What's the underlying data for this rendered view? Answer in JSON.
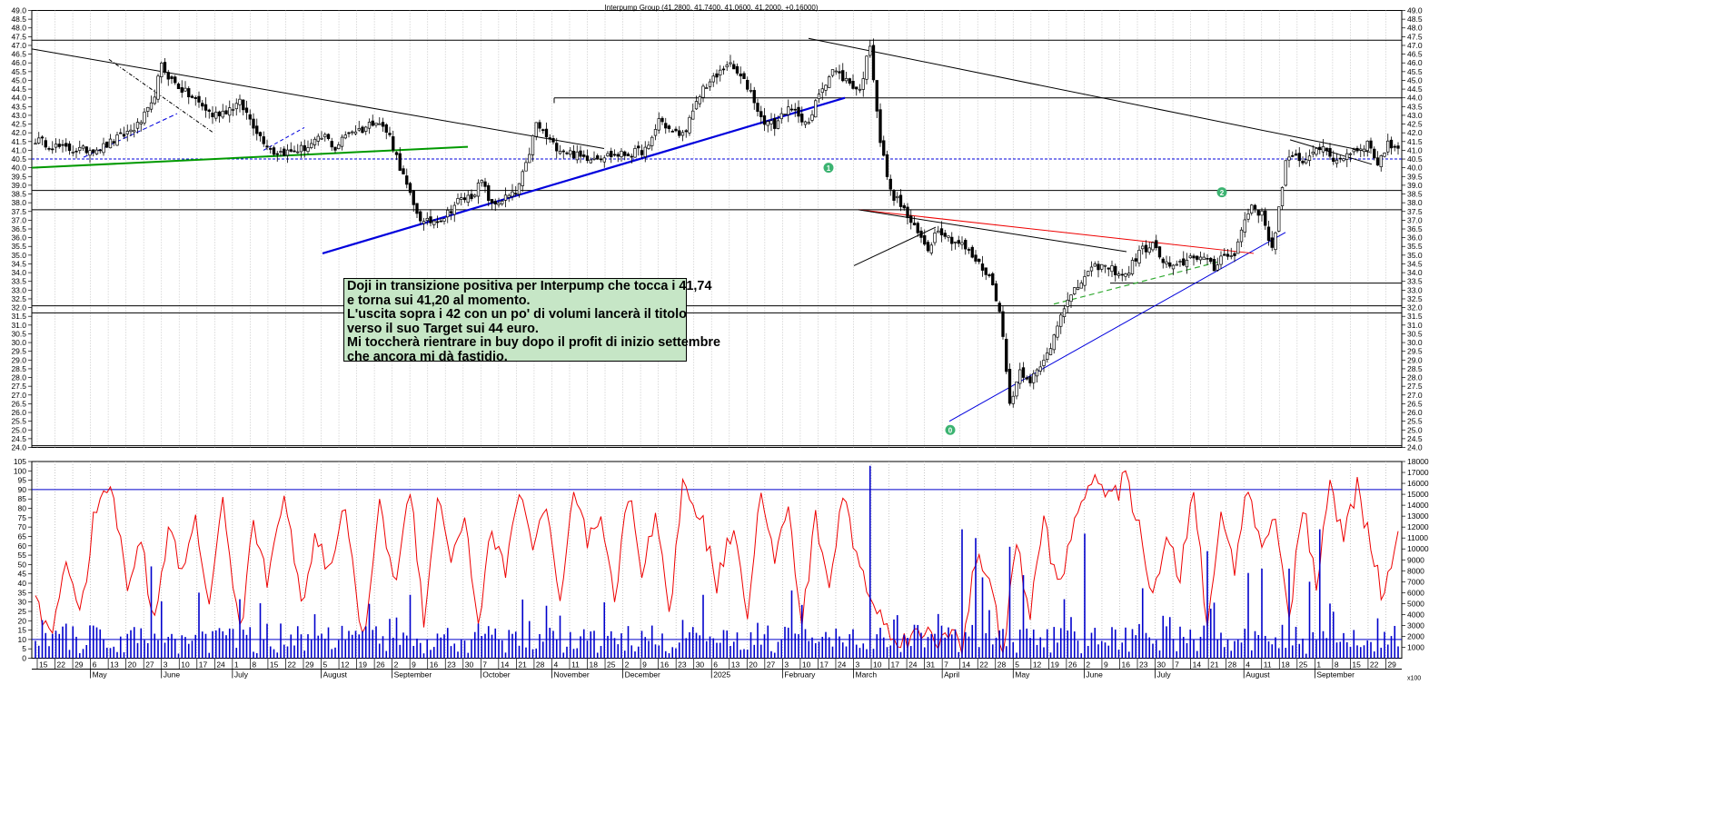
{
  "header": {
    "title": "Interpump Group (41.2800, 41.7400, 41.0600, 41.2000, +0.16000)"
  },
  "note": {
    "lines": [
      "Doji in transizione positiva per Interpump che tocca i 41,74",
      "e torna sui 41,20 al momento.",
      "L'uscita sopra i 42 con un po' di volumi lancerà il titolo",
      "verso il suo Target sui 44 euro.",
      "Mi toccherà rientrare in buy dopo il profit di inizio settembre",
      "che ancora mi dà fastidio."
    ]
  },
  "chart_data": [
    {
      "type": "candlestick",
      "title": "Interpump Group (41.2800, 41.7400, 41.0600, 41.2000, +0.16000)",
      "ylim": [
        24.0,
        49.0
      ],
      "y_ticks": [
        "49.0",
        "48.5",
        "48.0",
        "47.5",
        "47.0",
        "46.5",
        "46.0",
        "45.5",
        "45.0",
        "44.5",
        "44.0",
        "43.5",
        "43.0",
        "42.5",
        "42.0",
        "41.5",
        "41.0",
        "40.5",
        "40.0",
        "39.5",
        "39.0",
        "38.5",
        "38.0",
        "37.5",
        "37.0",
        "36.5",
        "36.0",
        "35.5",
        "35.0",
        "34.5",
        "34.0",
        "33.5",
        "33.0",
        "32.5",
        "32.0",
        "31.5",
        "31.0",
        "30.5",
        "30.0",
        "29.5",
        "29.0",
        "28.5",
        "28.0",
        "27.5",
        "27.0",
        "26.5",
        "26.0",
        "25.5",
        "25.0",
        "24.5",
        "24.0"
      ],
      "last_ohlc": {
        "open": 41.28,
        "high": 41.74,
        "low": 41.06,
        "close": 41.2,
        "change": 0.16
      },
      "price_path": [
        [
          0,
          41.6
        ],
        [
          8,
          41.1
        ],
        [
          14,
          41.0
        ],
        [
          20,
          41.2
        ],
        [
          26,
          41.9
        ],
        [
          30,
          42.4
        ],
        [
          34,
          43.5
        ],
        [
          37,
          45.8
        ],
        [
          40,
          45.0
        ],
        [
          44,
          44.3
        ],
        [
          48,
          43.7
        ],
        [
          52,
          43.0
        ],
        [
          56,
          43.3
        ],
        [
          60,
          43.7
        ],
        [
          63,
          42.8
        ],
        [
          66,
          41.8
        ],
        [
          70,
          40.9
        ],
        [
          75,
          40.9
        ],
        [
          80,
          41.2
        ],
        [
          85,
          41.8
        ],
        [
          88,
          41.1
        ],
        [
          92,
          42.1
        ],
        [
          96,
          42.2
        ],
        [
          100,
          42.8
        ],
        [
          104,
          41.8
        ],
        [
          108,
          39.5
        ],
        [
          111,
          37.8
        ],
        [
          114,
          36.8
        ],
        [
          117,
          37.0
        ],
        [
          120,
          37.2
        ],
        [
          124,
          38.1
        ],
        [
          128,
          38.4
        ],
        [
          131,
          39.2
        ],
        [
          134,
          37.8
        ],
        [
          137,
          38.2
        ],
        [
          141,
          38.5
        ],
        [
          144,
          40.1
        ],
        [
          147,
          42.5
        ],
        [
          152,
          41.3
        ],
        [
          160,
          40.6
        ],
        [
          168,
          40.7
        ],
        [
          175,
          40.8
        ],
        [
          180,
          41.1
        ],
        [
          183,
          42.8
        ],
        [
          187,
          42.0
        ],
        [
          190,
          41.9
        ],
        [
          193,
          43.1
        ],
        [
          196,
          44.6
        ],
        [
          200,
          45.2
        ],
        [
          203,
          46.0
        ],
        [
          206,
          45.4
        ],
        [
          210,
          44.4
        ],
        [
          213,
          42.8
        ],
        [
          217,
          42.4
        ],
        [
          220,
          43.3
        ],
        [
          224,
          43.1
        ],
        [
          227,
          42.4
        ],
        [
          230,
          44.3
        ],
        [
          234,
          45.6
        ],
        [
          238,
          45.0
        ],
        [
          242,
          44.4
        ],
        [
          245,
          47.1
        ],
        [
          248,
          41.5
        ],
        [
          251,
          38.6
        ],
        [
          254,
          37.9
        ],
        [
          258,
          36.5
        ],
        [
          262,
          35.4
        ],
        [
          265,
          36.6
        ],
        [
          268,
          36.0
        ],
        [
          272,
          35.6
        ],
        [
          276,
          34.7
        ],
        [
          280,
          33.8
        ],
        [
          283,
          32.0
        ],
        [
          286,
          26.5
        ],
        [
          289,
          28.4
        ],
        [
          292,
          27.9
        ],
        [
          295,
          28.5
        ],
        [
          298,
          29.8
        ],
        [
          301,
          31.8
        ],
        [
          304,
          32.6
        ],
        [
          308,
          33.8
        ],
        [
          312,
          34.4
        ],
        [
          316,
          34.2
        ],
        [
          320,
          33.8
        ],
        [
          324,
          35.2
        ],
        [
          328,
          35.6
        ],
        [
          331,
          34.6
        ],
        [
          334,
          34.2
        ],
        [
          337,
          34.6
        ],
        [
          340,
          35.0
        ],
        [
          343,
          34.8
        ],
        [
          346,
          34.2
        ],
        [
          349,
          35.2
        ],
        [
          352,
          34.9
        ],
        [
          354,
          36.5
        ],
        [
          357,
          37.9
        ],
        [
          360,
          37.3
        ],
        [
          363,
          35.4
        ],
        [
          365,
          37.6
        ],
        [
          367,
          40.3
        ],
        [
          370,
          40.6
        ],
        [
          373,
          40.4
        ],
        [
          376,
          41.3
        ],
        [
          379,
          40.8
        ],
        [
          382,
          40.4
        ],
        [
          385,
          40.8
        ],
        [
          388,
          41.1
        ],
        [
          391,
          41.4
        ],
        [
          394,
          40.3
        ],
        [
          397,
          41.3
        ],
        [
          400,
          41.2
        ]
      ]
    },
    {
      "type": "bar",
      "title": "Volume",
      "ylim": [
        0,
        18000
      ],
      "y_ticks": [
        "18000",
        "17000",
        "16000",
        "15000",
        "14000",
        "13000",
        "12000",
        "11000",
        "10000",
        "9000",
        "8000",
        "7000",
        "6000",
        "5000",
        "4000",
        "3000",
        "2000",
        "1000"
      ],
      "scale_label": "x100",
      "reference_level": 4000
    },
    {
      "type": "line",
      "title": "Oscillator",
      "ylim": [
        0,
        105
      ],
      "y_ticks": [
        "105",
        "100",
        "95",
        "90",
        "85",
        "80",
        "75",
        "70",
        "65",
        "60",
        "55",
        "50",
        "45",
        "40",
        "35",
        "30",
        "25",
        "20",
        "15",
        "10",
        "5",
        "0"
      ],
      "levels": [
        90,
        10
      ],
      "anchor_values": [
        [
          0,
          28
        ],
        [
          5,
          14
        ],
        [
          9,
          56
        ],
        [
          13,
          20
        ],
        [
          17,
          72
        ],
        [
          22,
          95
        ],
        [
          27,
          38
        ],
        [
          31,
          62
        ],
        [
          35,
          18
        ],
        [
          39,
          70
        ],
        [
          43,
          44
        ],
        [
          47,
          78
        ],
        [
          51,
          24
        ],
        [
          55,
          88
        ],
        [
          60,
          12
        ],
        [
          64,
          72
        ],
        [
          68,
          42
        ],
        [
          73,
          92
        ],
        [
          78,
          26
        ],
        [
          82,
          66
        ],
        [
          86,
          44
        ],
        [
          91,
          82
        ],
        [
          96,
          8
        ],
        [
          101,
          80
        ],
        [
          106,
          40
        ],
        [
          110,
          92
        ],
        [
          114,
          22
        ],
        [
          118,
          86
        ],
        [
          122,
          54
        ],
        [
          126,
          76
        ],
        [
          130,
          18
        ],
        [
          134,
          70
        ],
        [
          138,
          44
        ],
        [
          142,
          92
        ],
        [
          146,
          60
        ],
        [
          150,
          82
        ],
        [
          154,
          26
        ],
        [
          158,
          88
        ],
        [
          162,
          62
        ],
        [
          166,
          72
        ],
        [
          170,
          30
        ],
        [
          174,
          88
        ],
        [
          178,
          48
        ],
        [
          182,
          78
        ],
        [
          186,
          22
        ],
        [
          190,
          92
        ],
        [
          195,
          78
        ],
        [
          200,
          40
        ],
        [
          205,
          72
        ],
        [
          209,
          26
        ],
        [
          213,
          90
        ],
        [
          217,
          50
        ],
        [
          221,
          82
        ],
        [
          225,
          16
        ],
        [
          229,
          76
        ],
        [
          233,
          36
        ],
        [
          237,
          88
        ],
        [
          241,
          56
        ],
        [
          245,
          32
        ],
        [
          249,
          18
        ],
        [
          253,
          12
        ],
        [
          257,
          10
        ],
        [
          261,
          14
        ],
        [
          265,
          8
        ],
        [
          269,
          18
        ],
        [
          272,
          6
        ],
        [
          276,
          54
        ],
        [
          280,
          40
        ],
        [
          284,
          4
        ],
        [
          288,
          60
        ],
        [
          292,
          24
        ],
        [
          296,
          72
        ],
        [
          300,
          40
        ],
        [
          304,
          62
        ],
        [
          308,
          90
        ],
        [
          312,
          96
        ],
        [
          316,
          84
        ],
        [
          320,
          96
        ],
        [
          324,
          72
        ],
        [
          328,
          30
        ],
        [
          332,
          62
        ],
        [
          336,
          44
        ],
        [
          340,
          92
        ],
        [
          344,
          14
        ],
        [
          348,
          76
        ],
        [
          352,
          50
        ],
        [
          356,
          92
        ],
        [
          360,
          56
        ],
        [
          364,
          80
        ],
        [
          368,
          20
        ],
        [
          372,
          82
        ],
        [
          376,
          40
        ],
        [
          380,
          90
        ],
        [
          384,
          64
        ],
        [
          388,
          92
        ],
        [
          392,
          58
        ],
        [
          396,
          30
        ],
        [
          400,
          72
        ]
      ]
    }
  ],
  "x_axis": {
    "day_ticks": [
      "15",
      "22",
      "29",
      "6",
      "13",
      "20",
      "27",
      "3",
      "10",
      "17",
      "24",
      "1",
      "8",
      "15",
      "22",
      "29",
      "5",
      "12",
      "19",
      "26",
      "2",
      "9",
      "16",
      "23",
      "30",
      "7",
      "14",
      "21",
      "28",
      "4",
      "11",
      "18",
      "25",
      "2",
      "9",
      "16",
      "23",
      "30",
      "6",
      "13",
      "20",
      "27",
      "3",
      "10",
      "17",
      "24",
      "3",
      "10",
      "17",
      "24",
      "31",
      "7",
      "14",
      "22",
      "28",
      "5",
      "12",
      "19",
      "26",
      "2",
      "9",
      "16",
      "23",
      "30",
      "7",
      "14",
      "21",
      "28",
      "4",
      "11",
      "18",
      "25",
      "1",
      "8",
      "15",
      "22",
      "29"
    ],
    "month_labels": [
      "May",
      "June",
      "July",
      "August",
      "September",
      "October",
      "November",
      "December",
      "2025",
      "February",
      "March",
      "April",
      "May",
      "June",
      "July",
      "August",
      "September"
    ]
  },
  "markers": [
    "0",
    "1",
    "2"
  ],
  "colors": {
    "background": "#ffffff",
    "candle_up": "#ffffff",
    "candle_down": "#000000",
    "trend_blue": "#0000dd",
    "trend_green": "#009900",
    "trend_red": "#ee0000",
    "dashed_green": "#33aa33",
    "oscillator": "#ee0000",
    "volume": "#0000cc",
    "note_bg": "#c6e6c6",
    "badge": "#3cb371"
  }
}
